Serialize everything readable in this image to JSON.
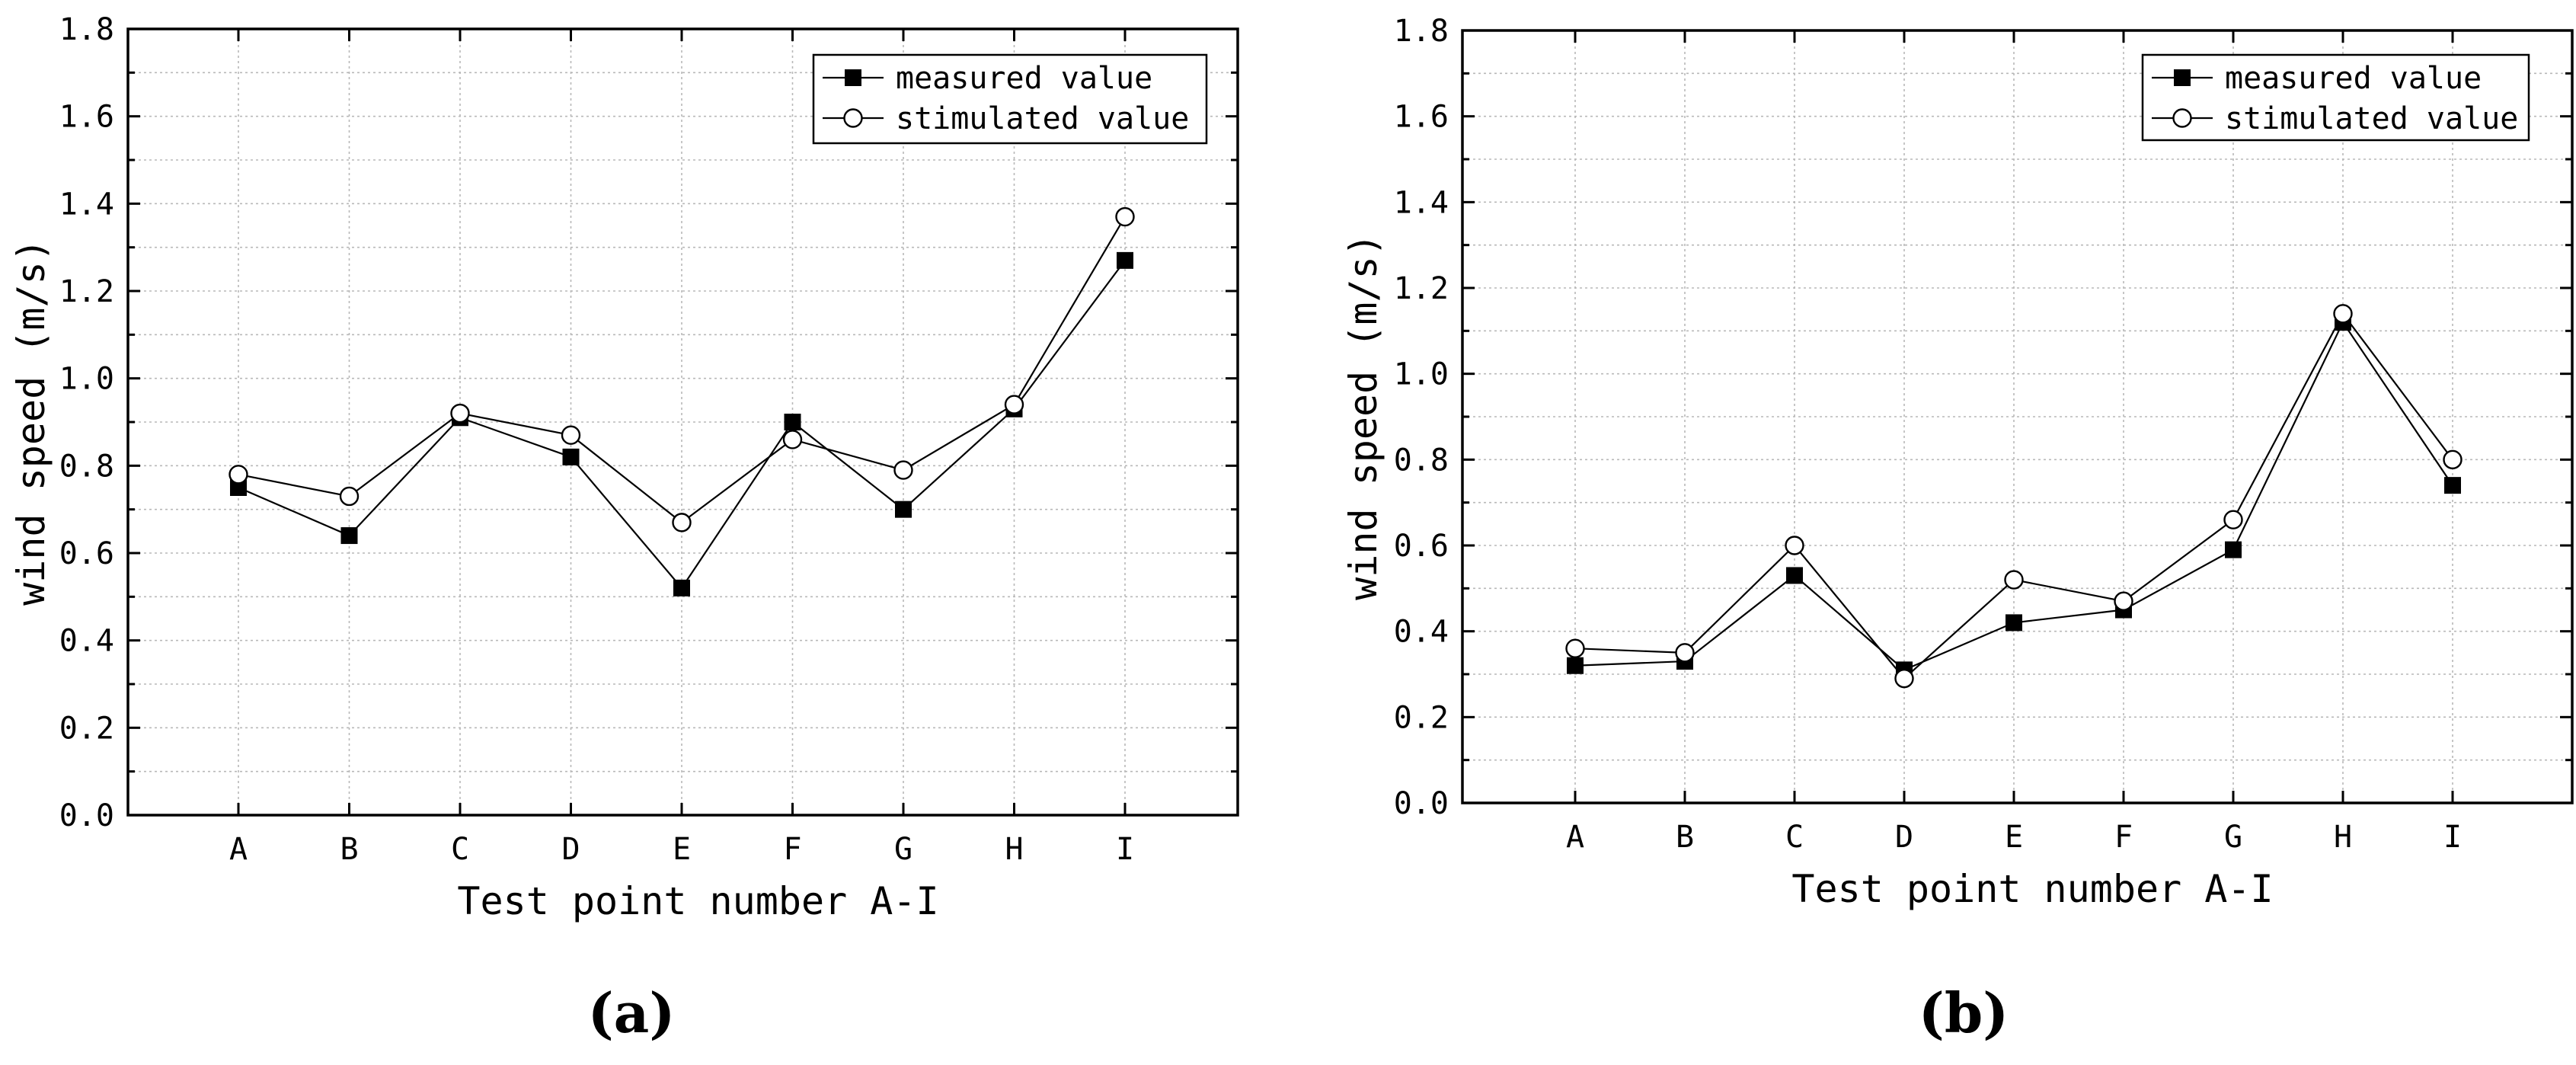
{
  "chart_data": [
    {
      "type": "line",
      "panel_label": "(a)",
      "xlabel": "Test point number A-I",
      "ylabel": "wind speed (m/s)",
      "categories": [
        "A",
        "B",
        "C",
        "D",
        "E",
        "F",
        "G",
        "H",
        "I"
      ],
      "ylim": [
        0,
        1.8
      ],
      "yticks": [
        "0.0",
        "0.2",
        "0.4",
        "0.6",
        "0.8",
        "1.0",
        "1.2",
        "1.4",
        "1.6",
        "1.8"
      ],
      "grid": true,
      "legend_position": "top-right",
      "series": [
        {
          "name": "measured value",
          "marker": "filled-square",
          "values": [
            0.75,
            0.64,
            0.91,
            0.82,
            0.52,
            0.9,
            0.7,
            0.93,
            1.27
          ]
        },
        {
          "name": "stimulated value",
          "marker": "open-circle",
          "values": [
            0.78,
            0.73,
            0.92,
            0.87,
            0.67,
            0.86,
            0.79,
            0.94,
            1.37
          ]
        }
      ]
    },
    {
      "type": "line",
      "panel_label": "(b)",
      "xlabel": "Test point number A-I",
      "ylabel": "wind speed (m/s)",
      "categories": [
        "A",
        "B",
        "C",
        "D",
        "E",
        "F",
        "G",
        "H",
        "I"
      ],
      "ylim": [
        0,
        1.8
      ],
      "yticks": [
        "0.0",
        "0.2",
        "0.4",
        "0.6",
        "0.8",
        "1.0",
        "1.2",
        "1.4",
        "1.6",
        "1.8"
      ],
      "grid": true,
      "legend_position": "top-right",
      "series": [
        {
          "name": "measured value",
          "marker": "filled-square",
          "values": [
            0.32,
            0.33,
            0.53,
            0.31,
            0.42,
            0.45,
            0.59,
            1.12,
            0.74
          ]
        },
        {
          "name": "stimulated value",
          "marker": "open-circle",
          "values": [
            0.36,
            0.35,
            0.6,
            0.29,
            0.52,
            0.47,
            0.66,
            1.14,
            0.8
          ]
        }
      ]
    }
  ]
}
